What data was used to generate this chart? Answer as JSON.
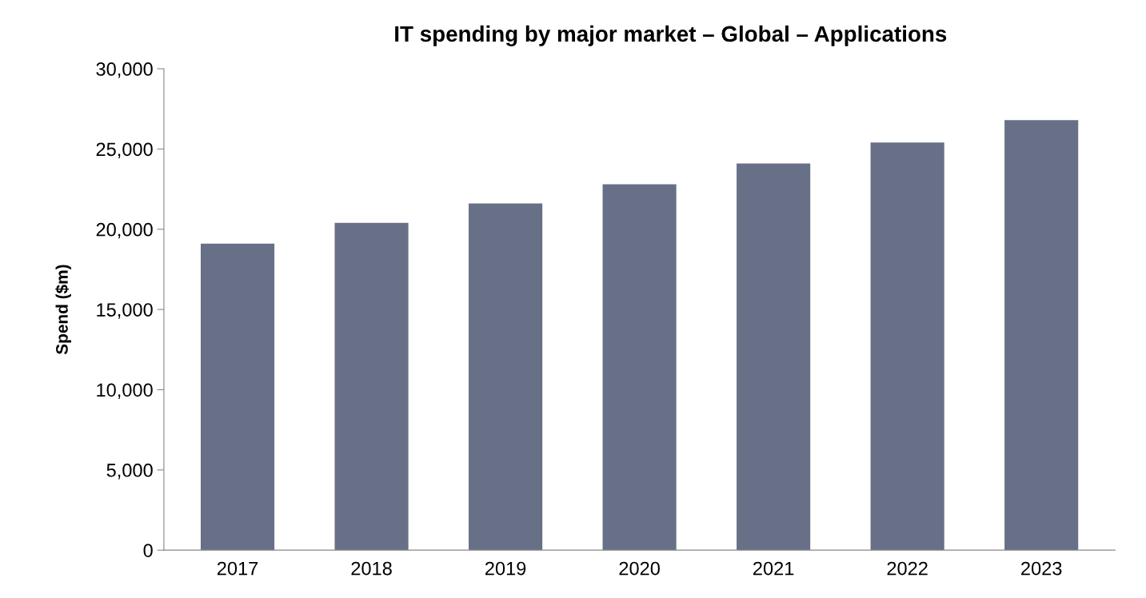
{
  "chart_data": {
    "type": "bar",
    "title": "IT spending by major market – Global – Applications",
    "ylabel": "Spend ($m)",
    "categories": [
      "2017",
      "2018",
      "2019",
      "2020",
      "2021",
      "2022",
      "2023"
    ],
    "values": [
      19100,
      20400,
      21600,
      22800,
      24100,
      25400,
      26800
    ],
    "color": "#687087",
    "ylim": [
      0,
      30000
    ],
    "yticks": [
      {
        "value": 0,
        "label": "0"
      },
      {
        "value": 5000,
        "label": "5,000"
      },
      {
        "value": 10000,
        "label": "10,000"
      },
      {
        "value": 15000,
        "label": "15,000"
      },
      {
        "value": 20000,
        "label": "20,000"
      },
      {
        "value": 25000,
        "label": "25,000"
      },
      {
        "value": 30000,
        "label": "30,000"
      }
    ],
    "grid": false
  }
}
